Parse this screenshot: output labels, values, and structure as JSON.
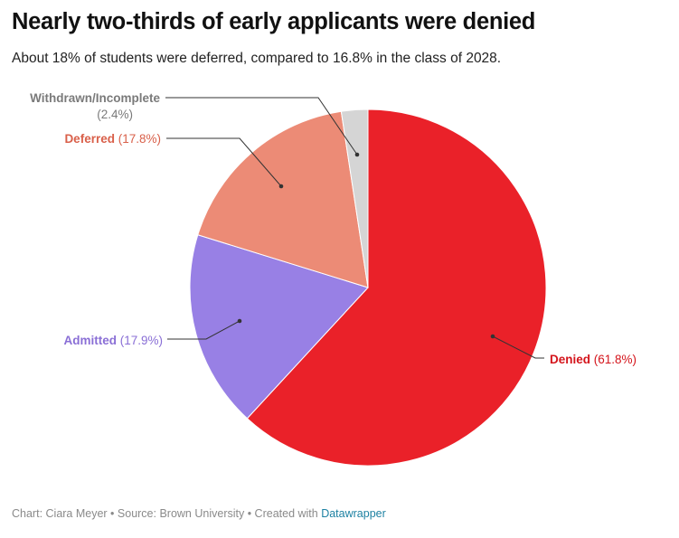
{
  "title": "Nearly two-thirds of early applicants were denied",
  "subtitle": "About 18% of students were deferred, compared to 16.8% in the class of 2028.",
  "footer": {
    "prefix": "Chart: Ciara Meyer • Source: Brown University • Created with ",
    "link": "Datawrapper"
  },
  "chart_data": {
    "type": "pie",
    "title": "Nearly two-thirds of early applicants were denied",
    "subtitle": "About 18% of students were deferred, compared to 16.8% in the class of 2028.",
    "unit": "%",
    "slices": [
      {
        "label": "Denied",
        "value": 61.8,
        "value_label": "(61.8%)",
        "color": "#ea2129"
      },
      {
        "label": "Admitted",
        "value": 17.9,
        "value_label": "(17.9%)",
        "color": "#9880e5"
      },
      {
        "label": "Deferred",
        "value": 17.8,
        "value_label": "(17.8%)",
        "color": "#ec8b76"
      },
      {
        "label": "Withdrawn/Incomplete",
        "value": 2.4,
        "value_label": "(2.4%)",
        "color": "#d5d5d5"
      }
    ],
    "label_colors": {
      "Denied": "#d4141b",
      "Admitted": "#8a6fd6",
      "Deferred": "#d9604a",
      "Withdrawn/Incomplete": "#7a7a7a"
    }
  }
}
